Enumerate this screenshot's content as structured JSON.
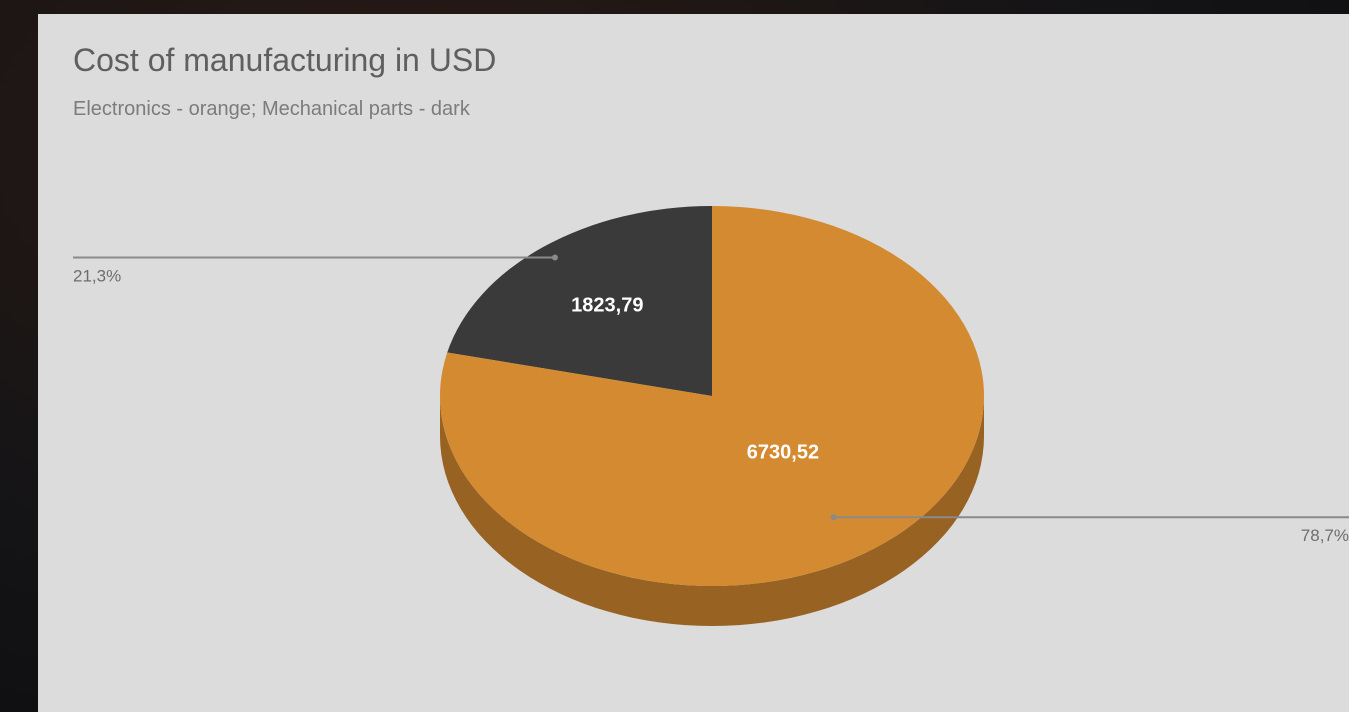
{
  "chart_data": {
    "type": "pie",
    "title": "Cost of manufacturing in USD",
    "subtitle": "Electronics - orange; Mechanical parts - dark",
    "three_d": true,
    "slices": [
      {
        "value": 1823.79,
        "value_label": "1823,79",
        "percent_label": "21,3%",
        "color": "#3a3a3a",
        "side_color": "#222222"
      },
      {
        "value": 6730.52,
        "value_label": "6730,52",
        "percent_label": "78,7%",
        "color": "#d48a30",
        "side_color": "#976222"
      }
    ],
    "legend": "none",
    "label_color_inside": "#ffffff",
    "label_color_outside": "#6e6e6e",
    "leader_color": "#8a8a8a"
  }
}
